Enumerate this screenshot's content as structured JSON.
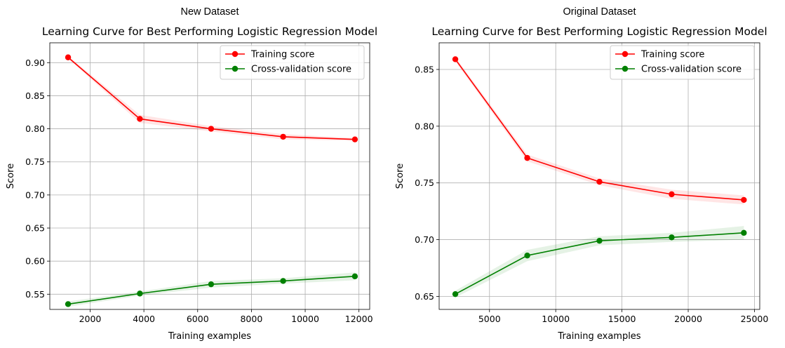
{
  "chart_data": [
    {
      "type": "line",
      "suptitle": "New Dataset",
      "title": "Learning Curve for Best Performing Logistic Regression Model",
      "xlabel": "Training examples",
      "ylabel": "Score",
      "xlim": [
        500,
        12400
      ],
      "ylim": [
        0.527,
        0.93
      ],
      "xticks": [
        2000,
        4000,
        6000,
        8000,
        10000,
        12000
      ],
      "yticks": [
        0.55,
        0.6,
        0.65,
        0.7,
        0.75,
        0.8,
        0.85,
        0.9
      ],
      "ytick_decimals": 2,
      "grid": true,
      "legend_position": "upper right",
      "x": [
        1180,
        3850,
        6500,
        9180,
        11850
      ],
      "series": [
        {
          "name": "Training score",
          "color": "#ff0000",
          "values": [
            0.908,
            0.815,
            0.8,
            0.788,
            0.784
          ],
          "band": [
            0.002,
            0.006,
            0.004,
            0.004,
            0.002
          ]
        },
        {
          "name": "Cross-validation score",
          "color": "#008000",
          "values": [
            0.535,
            0.551,
            0.565,
            0.57,
            0.577
          ],
          "band": [
            0.004,
            0.003,
            0.005,
            0.004,
            0.006
          ]
        }
      ]
    },
    {
      "type": "line",
      "suptitle": "Original Dataset",
      "title": "Learning Curve for Best Performing Logistic Regression Model",
      "xlabel": "Training examples",
      "ylabel": "Score",
      "xlim": [
        1200,
        25400
      ],
      "ylim": [
        0.6385,
        0.8735
      ],
      "xticks": [
        5000,
        10000,
        15000,
        20000,
        25000
      ],
      "yticks": [
        0.65,
        0.7,
        0.75,
        0.8,
        0.85
      ],
      "ytick_decimals": 2,
      "grid": true,
      "legend_position": "upper right",
      "x": [
        2420,
        7850,
        13300,
        18750,
        24200
      ],
      "series": [
        {
          "name": "Training score",
          "color": "#ff0000",
          "values": [
            0.859,
            0.772,
            0.751,
            0.74,
            0.735
          ],
          "band": [
            0.002,
            0.003,
            0.003,
            0.004,
            0.004
          ]
        },
        {
          "name": "Cross-validation score",
          "color": "#008000",
          "values": [
            0.652,
            0.686,
            0.699,
            0.702,
            0.706
          ],
          "band": [
            0.003,
            0.005,
            0.004,
            0.004,
            0.006
          ]
        }
      ]
    }
  ]
}
